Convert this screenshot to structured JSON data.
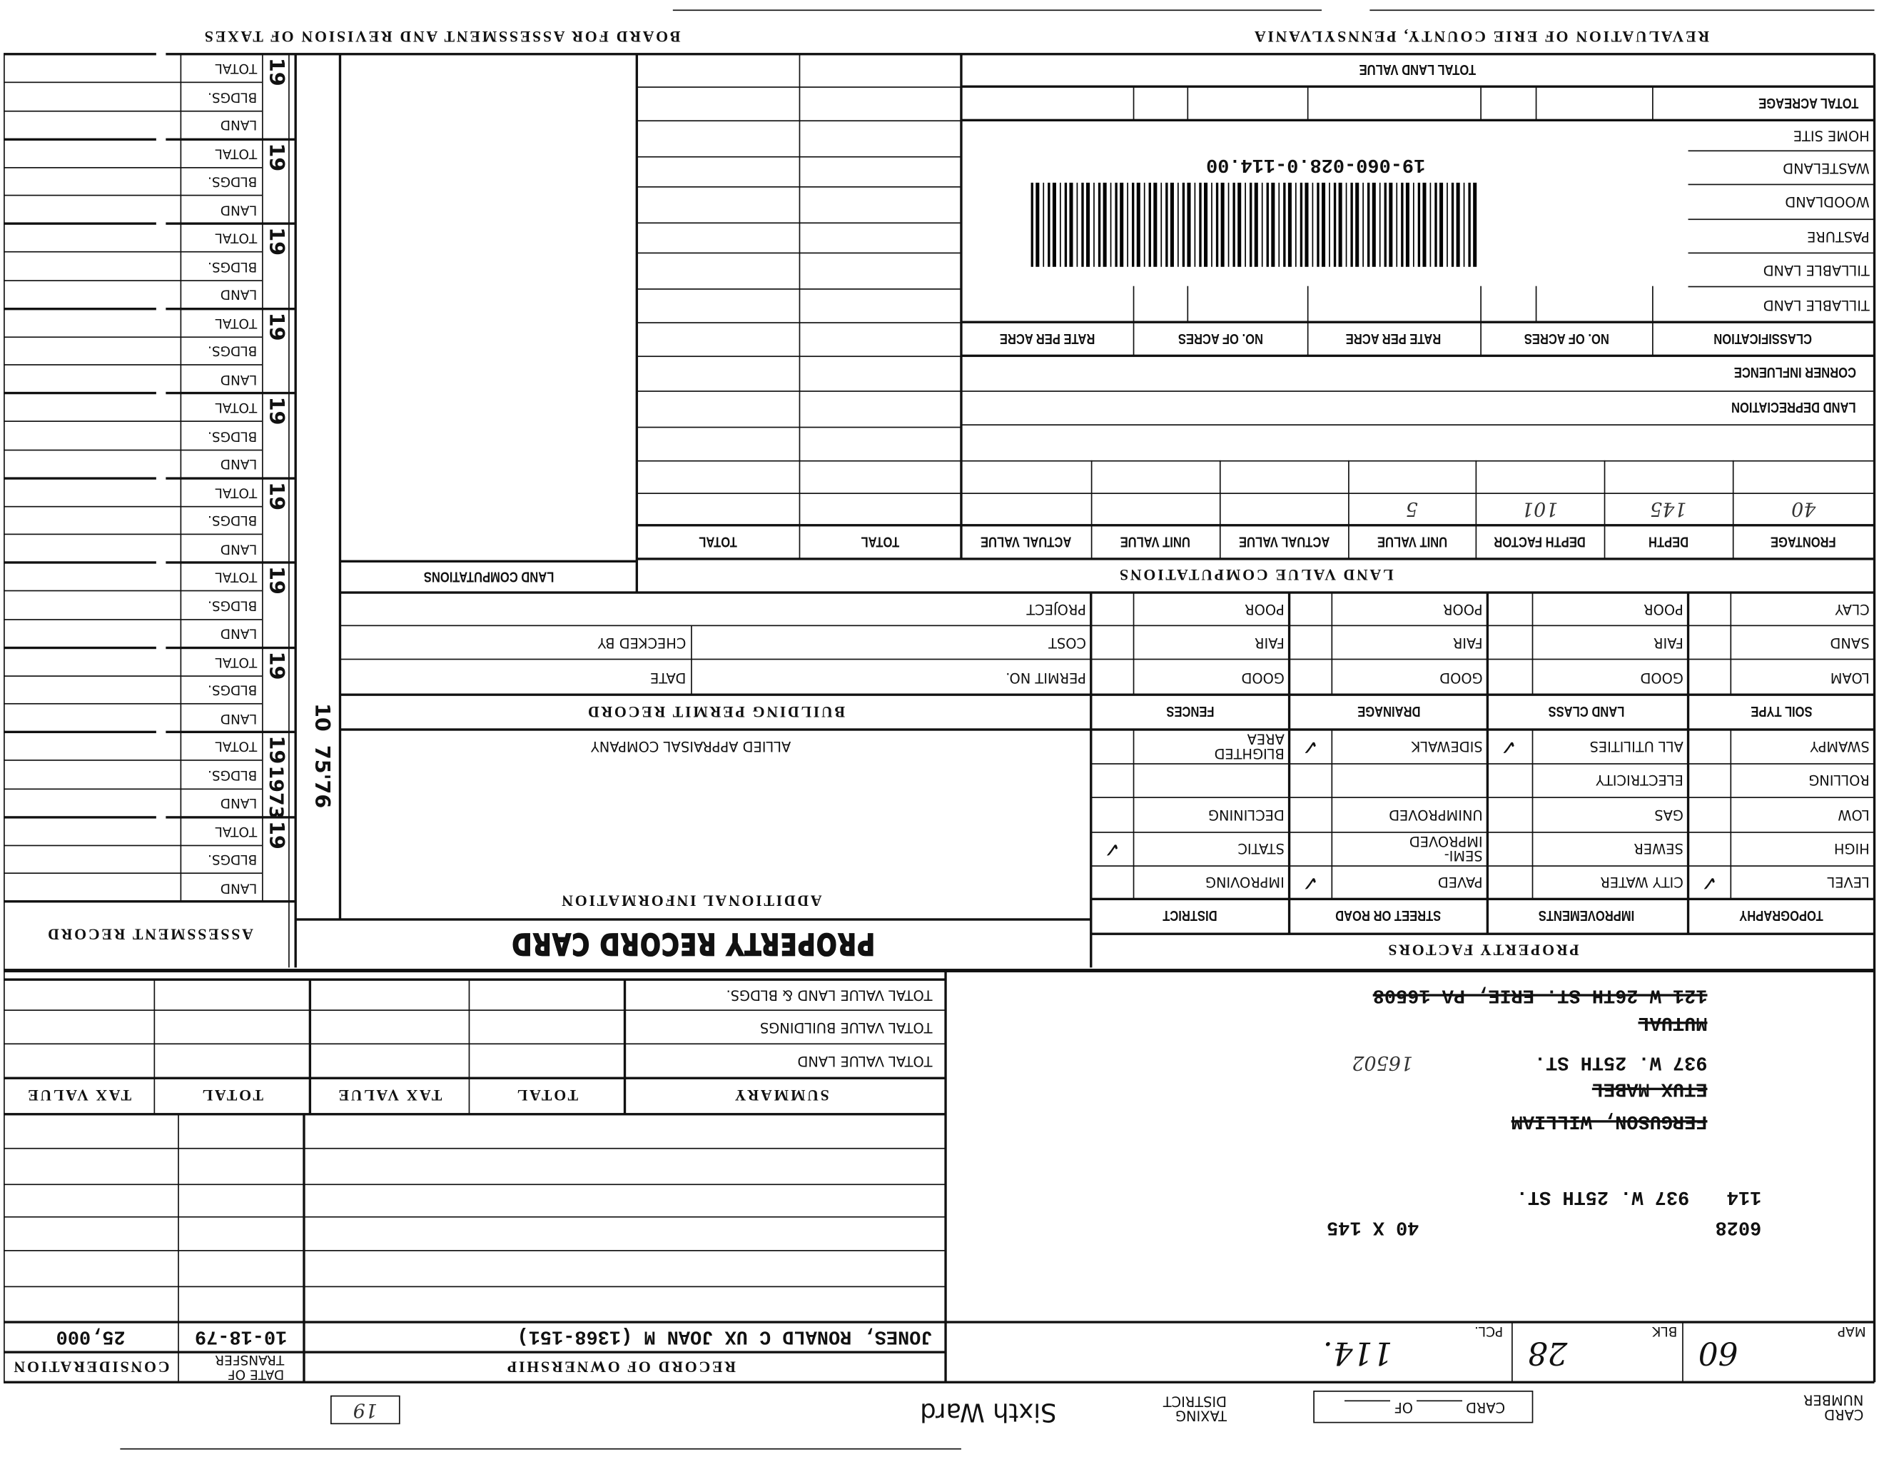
{
  "header": {
    "left_title": "BOARD FOR ASSESSMENT AND REVISION OF TAXES",
    "right_title": "REVALUATION OF ERIE COUNTY, PENNSYLVANIA"
  },
  "card": {
    "title": "PROPERTY RECORD CARD"
  },
  "assessment": {
    "title": "ASSESSMENT RECORD",
    "year_prefix": "19",
    "row_labels": [
      "LAND",
      "BLDGS.",
      "TOTAL"
    ],
    "handwritten": {
      "year": "1973",
      "code": "10",
      "note": "75'76"
    }
  },
  "land_computations": {
    "title": "LAND COMPUTATIONS"
  },
  "land_value": {
    "total_land_value": "TOTAL LAND VALUE",
    "total_acreage": "TOTAL ACREAGE",
    "classes": [
      "TILLABLE LAND",
      "TILLABLE LAND",
      "PASTURE",
      "WOODLAND",
      "WASTELAND",
      "HOME SITE"
    ],
    "classification_headers": [
      "CLASSIFICATION",
      "NO. OF ACRES",
      "RATE PER ACRE",
      "NO. OF ACRES",
      "RATE PER ACRE"
    ],
    "corner_influence": "CORNER INFLUENCE",
    "land_depreciation": "LAND DEPRECIATION",
    "parcel_id": "19-060-028.0-114.00",
    "computations_title": "LAND VALUE COMPUTATIONS",
    "computation_headers": [
      "FRONTAGE",
      "DEPTH",
      "DEPTH FACTOR",
      "UNIT VALUE",
      "ACTUAL VALUE",
      "UNIT VALUE",
      "ACTUAL VALUE",
      "TOTAL",
      "TOTAL"
    ],
    "computation_entries": [
      "40",
      "145",
      "101",
      "5"
    ]
  },
  "building_permit": {
    "title": "BUILDING PERMIT RECORD",
    "permit_no": "PERMIT NO.",
    "date": "DATE",
    "cost": "COST",
    "checked_by": "CHECKED BY",
    "project": "PROJECT"
  },
  "additional_info": {
    "title": "ADDITIONAL INFORMATION",
    "company": "ALLIED APPRAISAL COMPANY"
  },
  "property_factors": {
    "title": "PROPERTY FACTORS",
    "check_mark": "✓",
    "upper_groups": [
      {
        "header": "SOIL TYPE",
        "options": [
          "LOAM",
          "SAND",
          "CLAY"
        ]
      },
      {
        "header": "LAND CLASS",
        "options": [
          "GOOD",
          "FAIR",
          "POOR"
        ]
      },
      {
        "header": "DRAINAGE",
        "options": [
          "GOOD",
          "FAIR",
          "POOR"
        ]
      },
      {
        "header": "FENCES",
        "options": [
          "GOOD",
          "FAIR",
          "POOR"
        ]
      }
    ],
    "lower_groups": [
      {
        "header": "TOPOGRAPHY",
        "options": [
          "LEVEL",
          "HIGH",
          "LOW",
          "ROLLING",
          "SWAMPY"
        ],
        "checked": [
          true,
          false,
          false,
          false,
          false
        ]
      },
      {
        "header": "IMPROVEMENTS",
        "options": [
          "CITY WATER",
          "SEWER",
          "GAS",
          "ELECTRICITY",
          "ALL UTILITIES"
        ],
        "checked": [
          false,
          false,
          false,
          false,
          true
        ]
      },
      {
        "header": "STREET OR ROAD",
        "options": [
          "PAVED",
          "SEMI-IMPROVED",
          "UNIMPROVED",
          "",
          "SIDEWALK"
        ],
        "checked": [
          true,
          false,
          false,
          false,
          true
        ]
      },
      {
        "header": "DISTRICT",
        "options": [
          "IMPROVING",
          "STATIC",
          "DECLINING",
          "",
          "BLIGHTED AREA"
        ],
        "checked": [
          false,
          true,
          false,
          false,
          false
        ]
      }
    ]
  },
  "summary": {
    "headers": [
      "SUMMARY",
      "TOTAL",
      "TAX VALUE",
      "TOTAL",
      "TAX VALUE"
    ],
    "rows": [
      "TOTAL VALUE LAND",
      "TOTAL VALUE BUILDINGS",
      "TOTAL VALUE LAND & BLDGS."
    ]
  },
  "ownership": {
    "title": "RECORD OF OWNERSHIP",
    "date_header": "DATE OF TRANSFER",
    "consideration_header": "CONSIDERATION",
    "entries": [
      {
        "owner": "JONES, RONALD C UX JOAN M   (1368-151)",
        "date": "10-18-79",
        "consideration": "25,000"
      }
    ]
  },
  "property": {
    "lot_number": "6028",
    "dimensions": "40 X 145",
    "parcel": "114",
    "address": "937 W. 25TH ST.",
    "previous_owner_1": "FERGUSON, WILLIAM",
    "previous_owner_2": "ETUX MABEL",
    "mailing_address": "937 W. 25TH ST.",
    "mailing_zip": "16502",
    "previous_mailing_1": "MUTUAL",
    "previous_mailing_2": "121 W 26TH ST.   ERIE, PA  16508"
  },
  "map_ref": {
    "map_label": "MAP",
    "map_value": "60",
    "blk_label": "BLK",
    "blk_value": "28",
    "pcl_label": "PCL.",
    "pcl_value": "114."
  },
  "footer": {
    "card_number_label": "CARD NUMBER",
    "card_label": "CARD",
    "of_label": "OF",
    "taxing_district_label": "TAXING DISTRICT",
    "taxing_district_value": "Sixth Ward",
    "stamp_number": "19"
  }
}
